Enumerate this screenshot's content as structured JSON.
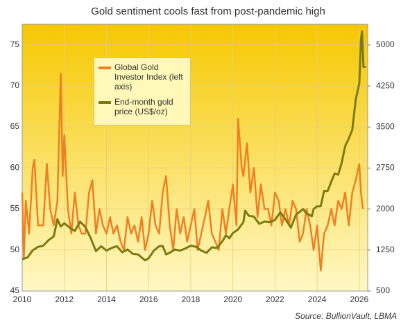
{
  "chart_data": {
    "type": "line",
    "title": "Gold sentiment cools fast from post-pandemic high",
    "source": "Source: BullionVault, LBMA",
    "xlim": [
      2010,
      2026.4
    ],
    "xticks": [
      2010,
      2012,
      2014,
      2016,
      2018,
      2020,
      2022,
      2024,
      2026
    ],
    "ylim": [
      45,
      77.5
    ],
    "yticks": [
      45,
      50,
      55,
      60,
      65,
      70,
      75
    ],
    "y2lim": [
      500,
      5380
    ],
    "y2ticks": [
      500,
      1250,
      2000,
      2750,
      3500,
      4250,
      5000
    ],
    "grid": true,
    "series": [
      {
        "name": "Global Gold Investor Index (left axis)",
        "color": "#f07f22",
        "x": [
          2010.0,
          2010.08,
          2010.17,
          2010.33,
          2010.5,
          2010.58,
          2010.75,
          2010.92,
          2011.0,
          2011.17,
          2011.33,
          2011.5,
          2011.67,
          2011.83,
          2011.92,
          2012.0,
          2012.17,
          2012.33,
          2012.5,
          2012.67,
          2012.83,
          2013.0,
          2013.17,
          2013.33,
          2013.5,
          2013.67,
          2013.83,
          2014.0,
          2014.17,
          2014.33,
          2014.5,
          2014.67,
          2014.83,
          2015.0,
          2015.17,
          2015.33,
          2015.5,
          2015.67,
          2015.83,
          2016.0,
          2016.17,
          2016.33,
          2016.5,
          2016.67,
          2016.83,
          2017.0,
          2017.17,
          2017.33,
          2017.5,
          2017.67,
          2017.83,
          2018.0,
          2018.17,
          2018.33,
          2018.5,
          2018.67,
          2018.83,
          2019.0,
          2019.17,
          2019.33,
          2019.5,
          2019.67,
          2019.83,
          2020.0,
          2020.17,
          2020.25,
          2020.42,
          2020.5,
          2020.67,
          2020.83,
          2021.0,
          2021.17,
          2021.33,
          2021.5,
          2021.67,
          2021.83,
          2022.0,
          2022.17,
          2022.33,
          2022.5,
          2022.67,
          2022.83,
          2023.0,
          2023.17,
          2023.33,
          2023.5,
          2023.67,
          2023.83,
          2024.0,
          2024.17,
          2024.33,
          2024.5,
          2024.67,
          2024.83,
          2025.0,
          2025.17,
          2025.33,
          2025.5,
          2025.67,
          2025.83,
          2026.0,
          2026.08,
          2026.17
        ],
        "values": [
          57,
          49,
          56,
          52,
          60,
          61,
          53,
          53,
          53,
          60.5,
          55,
          53,
          56,
          71.5,
          59,
          64,
          55,
          52,
          57,
          53,
          52,
          52,
          57,
          58.5,
          52,
          55,
          53,
          52,
          54,
          52,
          53,
          51,
          50,
          54,
          52,
          53,
          51,
          54,
          50,
          52,
          56,
          53,
          52,
          57,
          59,
          53,
          50,
          55,
          52,
          54,
          51,
          53,
          55,
          50,
          52,
          54,
          56,
          52,
          51,
          50,
          55,
          52,
          55,
          58,
          53,
          66,
          60,
          59,
          63,
          57,
          60,
          54,
          58,
          55,
          55,
          53,
          57,
          56,
          53,
          55,
          53,
          56,
          55,
          51,
          52,
          55,
          53,
          50,
          53,
          47.5,
          52,
          53,
          55,
          53,
          56,
          55,
          57,
          53,
          57,
          58.5,
          60.5,
          57,
          55
        ]
      },
      {
        "name": "End-month gold price (US$/oz)",
        "color": "#7b7a10",
        "axis": "y2",
        "x": [
          2010.0,
          2010.25,
          2010.5,
          2010.75,
          2011.0,
          2011.25,
          2011.5,
          2011.67,
          2011.83,
          2012.0,
          2012.25,
          2012.5,
          2012.75,
          2013.0,
          2013.25,
          2013.5,
          2013.75,
          2014.0,
          2014.25,
          2014.5,
          2014.75,
          2015.0,
          2015.25,
          2015.5,
          2015.83,
          2016.0,
          2016.25,
          2016.5,
          2016.67,
          2016.83,
          2017.0,
          2017.25,
          2017.5,
          2017.75,
          2018.0,
          2018.25,
          2018.5,
          2018.75,
          2019.0,
          2019.25,
          2019.5,
          2019.67,
          2019.83,
          2020.0,
          2020.25,
          2020.5,
          2020.58,
          2020.75,
          2021.0,
          2021.25,
          2021.5,
          2021.75,
          2022.0,
          2022.25,
          2022.5,
          2022.75,
          2023.0,
          2023.25,
          2023.33,
          2023.5,
          2023.75,
          2023.83,
          2024.0,
          2024.17,
          2024.33,
          2024.5,
          2024.67,
          2024.83,
          2025.0,
          2025.17,
          2025.33,
          2025.5,
          2025.67,
          2025.83,
          2026.0,
          2026.08,
          2026.13,
          2026.2,
          2026.3
        ],
        "values": [
          1080,
          1115,
          1245,
          1307,
          1330,
          1430,
          1500,
          1813,
          1680,
          1740,
          1660,
          1600,
          1770,
          1670,
          1470,
          1230,
          1320,
          1240,
          1290,
          1320,
          1210,
          1260,
          1180,
          1170,
          1060,
          1100,
          1240,
          1320,
          1325,
          1170,
          1200,
          1260,
          1240,
          1280,
          1330,
          1310,
          1240,
          1200,
          1300,
          1290,
          1410,
          1520,
          1465,
          1560,
          1630,
          1760,
          1970,
          1880,
          1860,
          1730,
          1770,
          1760,
          1800,
          1940,
          1810,
          1660,
          1900,
          1970,
          2000,
          1920,
          1870,
          2000,
          2050,
          2050,
          2330,
          2330,
          2500,
          2650,
          2630,
          2850,
          3150,
          3290,
          3450,
          4000,
          4300,
          5100,
          5250,
          4600,
          4600
        ]
      }
    ]
  }
}
